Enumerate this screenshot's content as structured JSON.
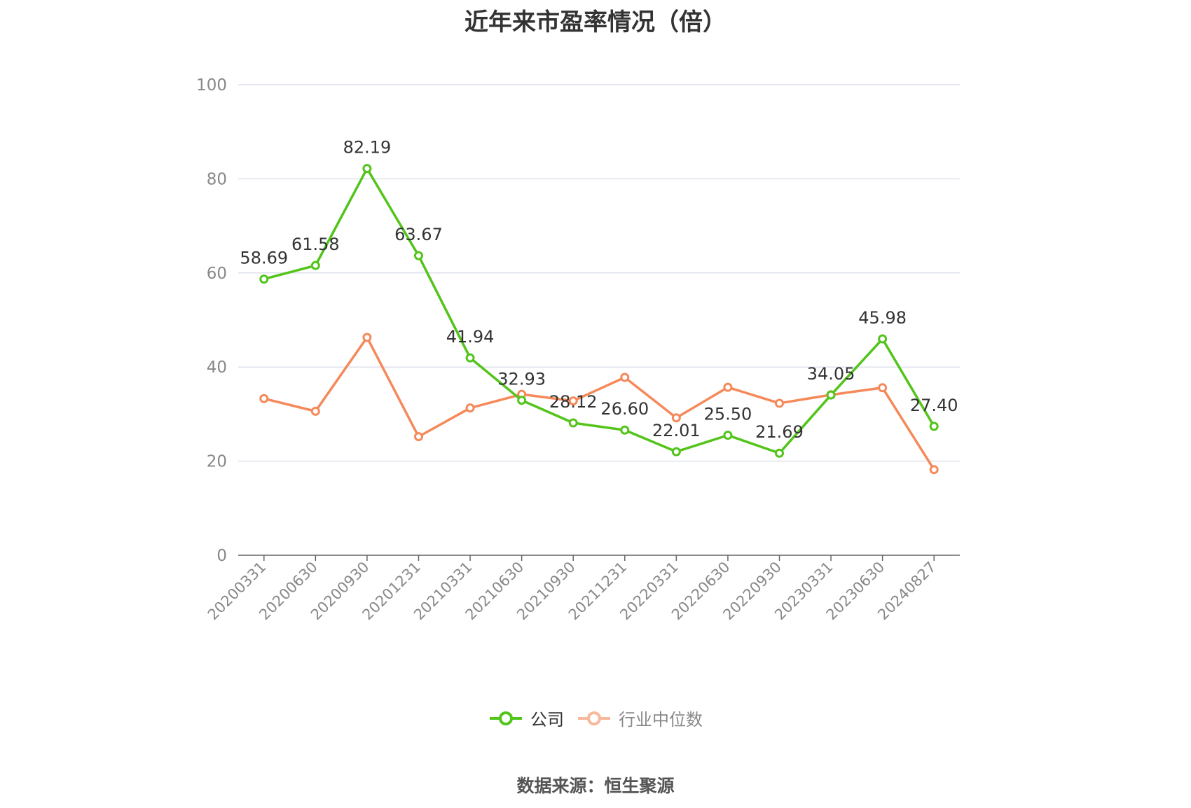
{
  "title": "近年来市盈率情况（倍）",
  "source": "数据来源：恒生聚源",
  "colors": {
    "company": "#52c41a",
    "industry": "#f5895a",
    "industry_legend": "#f8b89b",
    "grid": "#dde1ec",
    "axis": "#666666"
  },
  "legend": {
    "company": "公司",
    "industry": "行业中位数"
  },
  "chart_data": {
    "type": "line",
    "title": "近年来市盈率情况（倍）",
    "categories": [
      "20200331",
      "20200630",
      "20200930",
      "20201231",
      "20210331",
      "20210630",
      "20210930",
      "20211231",
      "20220331",
      "20220630",
      "20220930",
      "20230331",
      "20230630",
      "20240827"
    ],
    "ylim": [
      0,
      100
    ],
    "yticks": [
      0,
      20,
      40,
      60,
      80,
      100
    ],
    "grid": true,
    "legend_position": "bottom",
    "series": [
      {
        "name": "公司",
        "values": [
          58.69,
          61.58,
          82.19,
          63.67,
          41.94,
          32.93,
          28.12,
          26.6,
          22.01,
          25.5,
          21.69,
          34.05,
          45.98,
          27.4
        ],
        "labels": [
          "58.69",
          "61.58",
          "82.19",
          "63.67",
          "41.94",
          "32.93",
          "28.12",
          "26.60",
          "22.01",
          "25.50",
          "21.69",
          "34.05",
          "45.98",
          "27.40"
        ]
      },
      {
        "name": "行业中位数",
        "values": [
          33.3,
          30.6,
          46.3,
          25.2,
          31.3,
          34.2,
          32.8,
          37.8,
          29.2,
          35.7,
          32.3,
          34.1,
          35.6,
          18.2
        ]
      }
    ]
  }
}
